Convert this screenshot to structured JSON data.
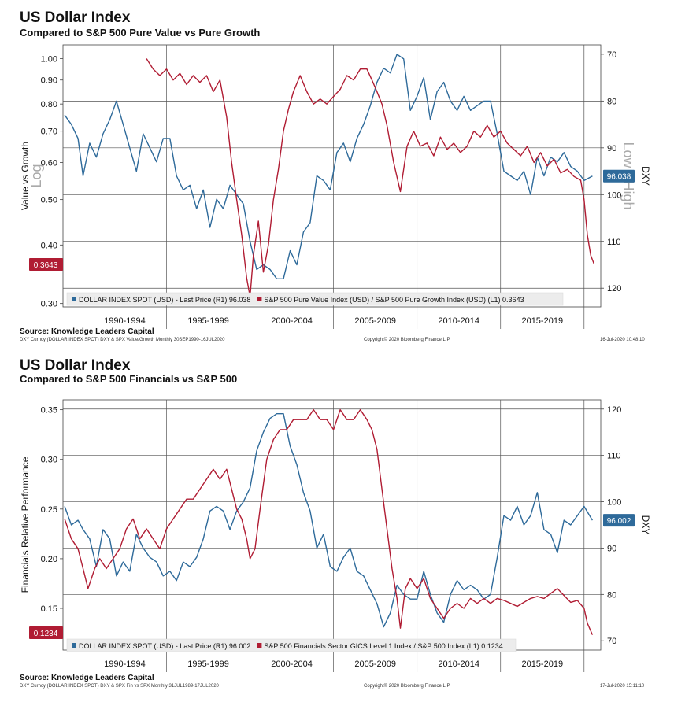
{
  "chart_data": [
    {
      "type": "line",
      "title": "US Dollar Index",
      "subtitle": "Compared to S&P 500 Pure Value vs Pure Growth",
      "ylabel_left": "Value vs Growth",
      "ylabel_right": "DXY",
      "left_scale_note": "Log",
      "right_scale_note": "Low - High",
      "left_ticks": [
        "1.00",
        "0.90",
        "0.80",
        "0.70",
        "0.60",
        "0.50",
        "0.40",
        "0.30"
      ],
      "left_tick_values": [
        1.0,
        0.9,
        0.8,
        0.7,
        0.6,
        0.5,
        0.4,
        0.3
      ],
      "ylim_left": [
        0.295,
        1.07
      ],
      "right_ticks": [
        "70",
        "80",
        "90",
        "100",
        "110",
        "120"
      ],
      "right_tick_values": [
        70,
        80,
        90,
        100,
        110,
        120
      ],
      "ylim_right": [
        68,
        124
      ],
      "right_inverted": true,
      "xlim": [
        1988.8,
        2021.0
      ],
      "x_ticks": [
        1990,
        1995,
        2000,
        2005,
        2010,
        2015,
        2020
      ],
      "x_labels": [
        "1990-1994",
        "1995-1999",
        "2000-2004",
        "2005-2009",
        "2010-2014",
        "2015-2019"
      ],
      "x_label_centers": [
        1992.5,
        1997.5,
        2002.5,
        2007.5,
        2012.5,
        2017.5
      ],
      "right_h_gridlines": [
        80,
        90,
        100,
        110,
        120
      ],
      "badge_right": "96.038",
      "badge_left": "0.3643",
      "source": "Source: Knowledge Leaders Capital",
      "footer_left": "DXY Curncy (DOLLAR INDEX SPOT) DXY & SPX Value/Growth  Monthly 30SEP1990-16JUL2020",
      "footer_mid": "Copyright© 2020 Bloomberg Finance L.P.",
      "footer_right": "16-Jul-2020 10:48:10",
      "series": [
        {
          "name": "DOLLAR INDEX SPOT (USD) - Last Price (R1) 96.038",
          "axis": "right",
          "color": "#2e6a9a",
          "x": [
            1988.9,
            1989.3,
            1989.7,
            1990.0,
            1990.4,
            1990.8,
            1991.2,
            1991.6,
            1992.0,
            1992.4,
            1992.8,
            1993.2,
            1993.6,
            1994.0,
            1994.4,
            1994.8,
            1995.2,
            1995.6,
            1996.0,
            1996.4,
            1996.8,
            1997.2,
            1997.6,
            1998.0,
            1998.4,
            1998.8,
            1999.2,
            1999.6,
            2000.0,
            2000.4,
            2000.8,
            2001.2,
            2001.6,
            2002.0,
            2002.4,
            2002.8,
            2003.2,
            2003.6,
            2004.0,
            2004.4,
            2004.8,
            2005.2,
            2005.6,
            2006.0,
            2006.4,
            2006.8,
            2007.2,
            2007.6,
            2008.0,
            2008.4,
            2008.8,
            2009.2,
            2009.6,
            2010.0,
            2010.4,
            2010.8,
            2011.2,
            2011.6,
            2012.0,
            2012.4,
            2012.8,
            2013.2,
            2013.6,
            2014.0,
            2014.4,
            2014.8,
            2015.2,
            2015.6,
            2016.0,
            2016.4,
            2016.8,
            2017.2,
            2017.6,
            2018.0,
            2018.4,
            2018.8,
            2019.2,
            2019.6,
            2020.0,
            2020.5
          ],
          "values": [
            83,
            85,
            88,
            96,
            89,
            92,
            87,
            84,
            80,
            85,
            90,
            95,
            87,
            90,
            93,
            88,
            88,
            96,
            99,
            98,
            103,
            99,
            107,
            101,
            103,
            98,
            100,
            102,
            110,
            116,
            115,
            116,
            118,
            118,
            112,
            115,
            108,
            106,
            96,
            97,
            99,
            91,
            89,
            93,
            88,
            85,
            81,
            76,
            73,
            74,
            70,
            71,
            82,
            79,
            75,
            84,
            78,
            76,
            80,
            82,
            79,
            82,
            81,
            80,
            80,
            87,
            95,
            96,
            97,
            95,
            100,
            92,
            96,
            92,
            93,
            91,
            94,
            95,
            97,
            96.038
          ]
        },
        {
          "name": "S&P 500 Pure Value Index (USD) / S&P 500 Pure Growth Index (USD) (L1) 0.3643",
          "axis": "left",
          "color": "#b01c33",
          "x": [
            1993.8,
            1994.2,
            1994.6,
            1995.0,
            1995.4,
            1995.8,
            1996.2,
            1996.6,
            1997.0,
            1997.4,
            1997.8,
            1998.2,
            1998.6,
            1998.9,
            1999.2,
            1999.5,
            1999.8,
            2000.0,
            2000.2,
            2000.5,
            2000.8,
            2001.1,
            2001.4,
            2001.7,
            2002.0,
            2002.3,
            2002.6,
            2003.0,
            2003.4,
            2003.8,
            2004.2,
            2004.6,
            2005.0,
            2005.4,
            2005.8,
            2006.2,
            2006.6,
            2007.0,
            2007.3,
            2007.6,
            2007.9,
            2008.2,
            2008.6,
            2009.0,
            2009.4,
            2009.8,
            2010.2,
            2010.6,
            2011.0,
            2011.4,
            2011.8,
            2012.2,
            2012.6,
            2013.0,
            2013.4,
            2013.8,
            2014.2,
            2014.6,
            2015.0,
            2015.4,
            2015.8,
            2016.2,
            2016.6,
            2017.0,
            2017.4,
            2017.8,
            2018.2,
            2018.6,
            2019.0,
            2019.4,
            2019.8,
            2020.0,
            2020.2,
            2020.4,
            2020.6
          ],
          "values": [
            1.0,
            0.95,
            0.92,
            0.95,
            0.9,
            0.93,
            0.88,
            0.92,
            0.89,
            0.92,
            0.85,
            0.9,
            0.75,
            0.6,
            0.5,
            0.42,
            0.34,
            0.31,
            0.38,
            0.45,
            0.35,
            0.4,
            0.5,
            0.58,
            0.7,
            0.78,
            0.85,
            0.92,
            0.85,
            0.8,
            0.82,
            0.8,
            0.83,
            0.86,
            0.92,
            0.9,
            0.95,
            0.95,
            0.9,
            0.85,
            0.8,
            0.72,
            0.6,
            0.52,
            0.65,
            0.7,
            0.65,
            0.66,
            0.62,
            0.68,
            0.64,
            0.66,
            0.63,
            0.65,
            0.7,
            0.68,
            0.72,
            0.68,
            0.7,
            0.66,
            0.64,
            0.62,
            0.65,
            0.6,
            0.63,
            0.59,
            0.61,
            0.57,
            0.58,
            0.56,
            0.55,
            0.5,
            0.42,
            0.38,
            0.3643
          ]
        }
      ]
    },
    {
      "type": "line",
      "title": "US Dollar Index",
      "subtitle": "Compared to S&P 500 Financials vs S&P 500",
      "ylabel_left": "Financials Relative Performance",
      "ylabel_right": "DXY",
      "left_ticks": [
        "0.35",
        "0.30",
        "0.25",
        "0.20",
        "0.15"
      ],
      "left_tick_values": [
        0.35,
        0.3,
        0.25,
        0.2,
        0.15
      ],
      "ylim_left": [
        0.108,
        0.36
      ],
      "right_ticks": [
        "120",
        "110",
        "100",
        "90",
        "80",
        "70"
      ],
      "right_tick_values": [
        120,
        110,
        100,
        90,
        80,
        70
      ],
      "ylim_right": [
        68,
        122
      ],
      "right_inverted": false,
      "xlim": [
        1988.8,
        2021.0
      ],
      "x_ticks": [
        1990,
        1995,
        2000,
        2005,
        2010,
        2015,
        2020
      ],
      "x_labels": [
        "1990-1994",
        "1995-1999",
        "2000-2004",
        "2005-2009",
        "2010-2014",
        "2015-2019"
      ],
      "x_label_centers": [
        1992.5,
        1997.5,
        2002.5,
        2007.5,
        2012.5,
        2017.5
      ],
      "right_h_gridlines": [
        80,
        90,
        100,
        110,
        120
      ],
      "badge_right": "96.002",
      "badge_left": "0.1234",
      "source": "Source: Knowledge Leaders Capital",
      "footer_left": "DXY Curncy (DOLLAR INDEX SPOT) DXY & SPX Fin vs SPX  Monthly 31JUL1989-17JUL2020",
      "footer_mid": "Copyright© 2020 Bloomberg Finance L.P.",
      "footer_right": "17-Jul-2020 15:11:10",
      "series": [
        {
          "name": "DOLLAR INDEX SPOT (USD) - Last Price (R1) 96.002",
          "axis": "right",
          "color": "#2e6a9a",
          "x": [
            1988.9,
            1989.3,
            1989.7,
            1990.0,
            1990.4,
            1990.8,
            1991.2,
            1991.6,
            1992.0,
            1992.4,
            1992.8,
            1993.2,
            1993.6,
            1994.0,
            1994.4,
            1994.8,
            1995.2,
            1995.6,
            1996.0,
            1996.4,
            1996.8,
            1997.2,
            1997.6,
            1998.0,
            1998.4,
            1998.8,
            1999.2,
            1999.6,
            2000.0,
            2000.4,
            2000.8,
            2001.2,
            2001.6,
            2002.0,
            2002.4,
            2002.8,
            2003.2,
            2003.6,
            2004.0,
            2004.4,
            2004.8,
            2005.2,
            2005.6,
            2006.0,
            2006.4,
            2006.8,
            2007.2,
            2007.6,
            2008.0,
            2008.4,
            2008.8,
            2009.2,
            2009.6,
            2010.0,
            2010.4,
            2010.8,
            2011.2,
            2011.6,
            2012.0,
            2012.4,
            2012.8,
            2013.2,
            2013.6,
            2014.0,
            2014.4,
            2014.8,
            2015.2,
            2015.6,
            2016.0,
            2016.4,
            2016.8,
            2017.2,
            2017.6,
            2018.0,
            2018.4,
            2018.8,
            2019.2,
            2019.6,
            2020.0,
            2020.5
          ],
          "values": [
            99,
            95,
            96,
            94,
            92,
            86,
            94,
            92,
            84,
            87,
            85,
            93,
            90,
            88,
            87,
            84,
            85,
            83,
            87,
            86,
            88,
            92,
            98,
            99,
            98,
            94,
            98,
            100,
            103,
            111,
            115,
            118,
            119,
            119,
            112,
            108,
            102,
            98,
            90,
            93,
            86,
            85,
            88,
            90,
            85,
            84,
            81,
            78,
            73,
            76,
            82,
            80,
            79,
            79,
            85,
            80,
            76,
            74,
            80,
            83,
            81,
            82,
            81,
            79,
            80,
            88,
            97,
            96,
            99,
            95,
            97,
            102,
            94,
            93,
            89,
            96,
            95,
            97,
            99,
            96.002
          ]
        },
        {
          "name": "S&P 500 Financials Sector GICS Level 1 Index / S&P 500 Index (L1) 0.1234",
          "axis": "left",
          "color": "#b01c33",
          "x": [
            1988.9,
            1989.3,
            1989.7,
            1990.0,
            1990.3,
            1990.7,
            1991.0,
            1991.4,
            1991.8,
            1992.2,
            1992.6,
            1993.0,
            1993.4,
            1993.8,
            1994.2,
            1994.6,
            1995.0,
            1995.4,
            1995.8,
            1996.2,
            1996.6,
            1997.0,
            1997.4,
            1997.8,
            1998.2,
            1998.6,
            1998.9,
            1999.2,
            1999.5,
            1999.8,
            2000.0,
            2000.3,
            2000.6,
            2001.0,
            2001.4,
            2001.8,
            2002.2,
            2002.6,
            2003.0,
            2003.4,
            2003.8,
            2004.2,
            2004.6,
            2005.0,
            2005.4,
            2005.8,
            2006.2,
            2006.6,
            2007.0,
            2007.3,
            2007.6,
            2007.9,
            2008.2,
            2008.5,
            2008.8,
            2009.0,
            2009.3,
            2009.6,
            2010.0,
            2010.4,
            2010.8,
            2011.2,
            2011.6,
            2012.0,
            2012.4,
            2012.8,
            2013.2,
            2013.6,
            2014.0,
            2014.4,
            2014.8,
            2015.2,
            2015.6,
            2016.0,
            2016.4,
            2016.8,
            2017.2,
            2017.6,
            2018.0,
            2018.4,
            2018.8,
            2019.2,
            2019.6,
            2020.0,
            2020.2,
            2020.5
          ],
          "values": [
            0.24,
            0.22,
            0.21,
            0.19,
            0.17,
            0.19,
            0.2,
            0.19,
            0.2,
            0.21,
            0.23,
            0.24,
            0.22,
            0.23,
            0.22,
            0.21,
            0.23,
            0.24,
            0.25,
            0.26,
            0.26,
            0.27,
            0.28,
            0.29,
            0.28,
            0.29,
            0.27,
            0.25,
            0.24,
            0.22,
            0.2,
            0.21,
            0.25,
            0.3,
            0.32,
            0.33,
            0.33,
            0.34,
            0.34,
            0.34,
            0.35,
            0.34,
            0.34,
            0.33,
            0.35,
            0.34,
            0.34,
            0.35,
            0.34,
            0.33,
            0.31,
            0.27,
            0.23,
            0.19,
            0.16,
            0.13,
            0.17,
            0.18,
            0.17,
            0.18,
            0.16,
            0.15,
            0.14,
            0.15,
            0.155,
            0.15,
            0.16,
            0.155,
            0.16,
            0.155,
            0.16,
            0.158,
            0.155,
            0.152,
            0.156,
            0.16,
            0.162,
            0.16,
            0.165,
            0.17,
            0.163,
            0.156,
            0.158,
            0.15,
            0.135,
            0.1234
          ]
        }
      ]
    }
  ]
}
